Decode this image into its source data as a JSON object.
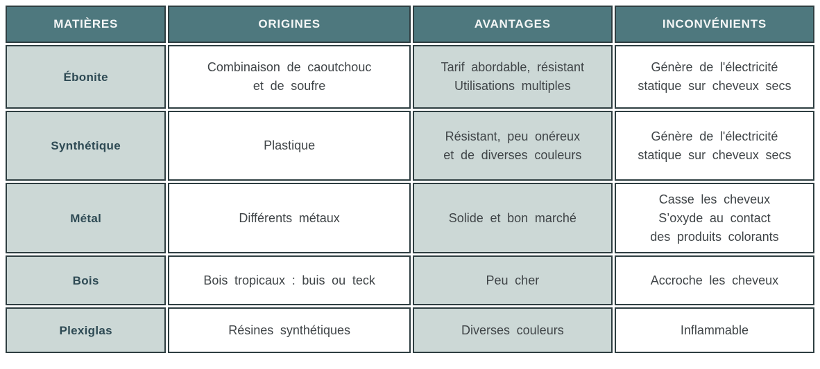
{
  "colors": {
    "header_background": "#4e787e",
    "header_text": "#f4f6f6",
    "shaded_cell_background": "#ccd8d6",
    "cell_border": "#2e3e41",
    "material_text": "#2e4a54",
    "body_text": "#3f4447"
  },
  "table": {
    "headers": [
      "MATIÈRES",
      "ORIGINES",
      "AVANTAGES",
      "INCONVÉNIENTS"
    ],
    "rows": [
      {
        "matiere": "Ébonite",
        "origine": "Combinaison de caoutchouc\net de soufre",
        "avantage": "Tarif abordable, résistant\nUtilisations multiples",
        "inconvenient": "Génère de l'électricité\nstatique sur cheveux secs"
      },
      {
        "matiere": "Synthétique",
        "origine": "Plastique",
        "avantage": "Résistant, peu onéreux\net de diverses couleurs",
        "inconvenient": "Génère de l'électricité\nstatique sur cheveux secs"
      },
      {
        "matiere": "Métal",
        "origine": "Différents métaux",
        "avantage": "Solide et bon marché",
        "inconvenient": "Casse les cheveux\nS’oxyde au contact\ndes produits colorants"
      },
      {
        "matiere": "Bois",
        "origine": "Bois tropicaux : buis ou teck",
        "avantage": "Peu cher",
        "inconvenient": "Accroche les cheveux"
      },
      {
        "matiere": "Plexiglas",
        "origine": "Résines synthétiques",
        "avantage": "Diverses couleurs",
        "inconvenient": "Inflammable"
      }
    ]
  }
}
